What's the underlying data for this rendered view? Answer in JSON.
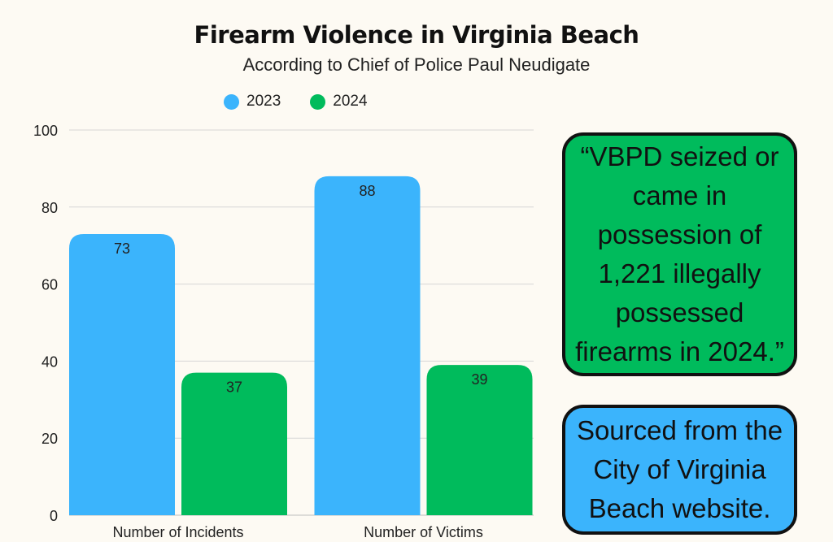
{
  "colors": {
    "series_2023": "#3bb4fc",
    "series_2024": "#00bb5c",
    "background": "#fdfaf3"
  },
  "chart_data": {
    "type": "bar",
    "title": "Firearm Violence in Virginia Beach",
    "subtitle": "According to Chief of Police Paul Neudigate",
    "categories": [
      "Number of Incidents",
      "Number of Victims"
    ],
    "series": [
      {
        "name": "2023",
        "values": [
          73,
          88
        ]
      },
      {
        "name": "2024",
        "values": [
          37,
          39
        ]
      }
    ],
    "ylim": [
      0,
      100
    ],
    "yticks": [
      0,
      20,
      40,
      60,
      80,
      100
    ],
    "grid": true,
    "legend_position": "top"
  },
  "quote": "“VBPD seized or came in possession of 1,221 illegally possessed firearms in 2024.”",
  "source": "Sourced from the City of Virginia Beach website."
}
